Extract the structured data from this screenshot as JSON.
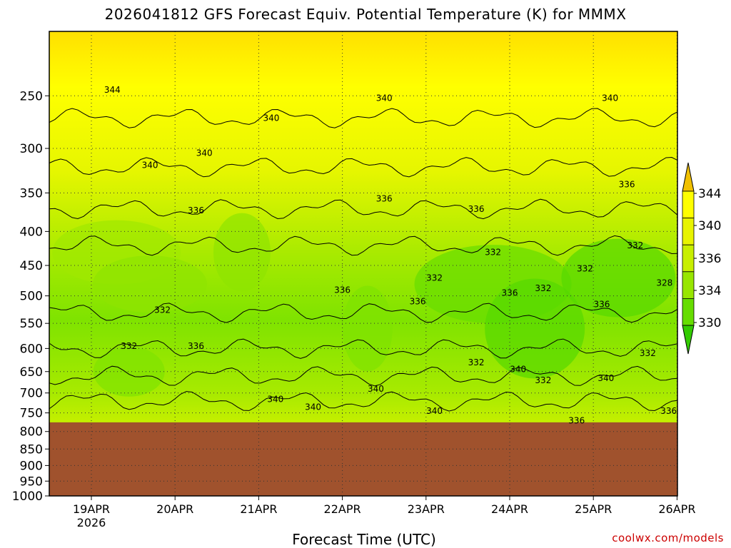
{
  "chart_data": {
    "type": "heatmap",
    "title": "2026041812 GFS Forecast Equiv. Potential Temperature (K) for MMMX",
    "xlabel": "Forecast Time (UTC)",
    "ylabel": "",
    "x_ticks": [
      "19APR",
      "20APR",
      "21APR",
      "22APR",
      "23APR",
      "24APR",
      "25APR",
      "26APR"
    ],
    "x_year_label": "2026",
    "y_ticks": [
      250,
      300,
      350,
      400,
      450,
      500,
      550,
      600,
      650,
      700,
      750,
      800,
      850,
      900,
      950,
      1000
    ],
    "y_scale": "log-pressure (inverted)",
    "ylim": [
      1000,
      200
    ],
    "colorbar": {
      "ticks": [
        344,
        340,
        336,
        334,
        330
      ],
      "colors": [
        "#f0c000",
        "#ffff00",
        "#e8f400",
        "#c8ef00",
        "#98e600",
        "#66dd00",
        "#33cc00"
      ]
    },
    "ground_level_hpa": 775,
    "ground_color": "#a0522d",
    "contour_labels": [
      {
        "text": "344",
        "t": 0.25,
        "p": 245
      },
      {
        "text": "340",
        "t": 2.15,
        "p": 270
      },
      {
        "text": "340",
        "t": 3.5,
        "p": 252
      },
      {
        "text": "340",
        "t": 6.2,
        "p": 252
      },
      {
        "text": "340",
        "t": 0.7,
        "p": 318
      },
      {
        "text": "340",
        "t": 1.35,
        "p": 305
      },
      {
        "text": "336",
        "t": 1.25,
        "p": 372
      },
      {
        "text": "336",
        "t": 3.5,
        "p": 357
      },
      {
        "text": "336",
        "t": 4.6,
        "p": 370
      },
      {
        "text": "336",
        "t": 6.4,
        "p": 340
      },
      {
        "text": "332",
        "t": 6.5,
        "p": 420
      },
      {
        "text": "332",
        "t": 4.8,
        "p": 430
      },
      {
        "text": "332",
        "t": 4.1,
        "p": 470
      },
      {
        "text": "332",
        "t": 5.4,
        "p": 487
      },
      {
        "text": "332",
        "t": 5.9,
        "p": 455
      },
      {
        "text": "328",
        "t": 6.85,
        "p": 478
      },
      {
        "text": "336",
        "t": 3.0,
        "p": 490
      },
      {
        "text": "336",
        "t": 3.9,
        "p": 510
      },
      {
        "text": "336",
        "t": 5.0,
        "p": 495
      },
      {
        "text": "336",
        "t": 6.1,
        "p": 515
      },
      {
        "text": "332",
        "t": 0.85,
        "p": 525
      },
      {
        "text": "332",
        "t": 0.45,
        "p": 595
      },
      {
        "text": "336",
        "t": 1.25,
        "p": 595
      },
      {
        "text": "332",
        "t": 4.6,
        "p": 630
      },
      {
        "text": "340",
        "t": 5.1,
        "p": 645
      },
      {
        "text": "332",
        "t": 5.4,
        "p": 670
      },
      {
        "text": "340",
        "t": 6.15,
        "p": 665
      },
      {
        "text": "332",
        "t": 6.65,
        "p": 610
      },
      {
        "text": "340",
        "t": 2.2,
        "p": 715
      },
      {
        "text": "340",
        "t": 2.65,
        "p": 735
      },
      {
        "text": "340",
        "t": 3.4,
        "p": 690
      },
      {
        "text": "340",
        "t": 4.1,
        "p": 745
      },
      {
        "text": "336",
        "t": 5.8,
        "p": 770
      },
      {
        "text": "336",
        "t": 6.9,
        "p": 745
      }
    ]
  },
  "watermark": "coolwx.com/models"
}
